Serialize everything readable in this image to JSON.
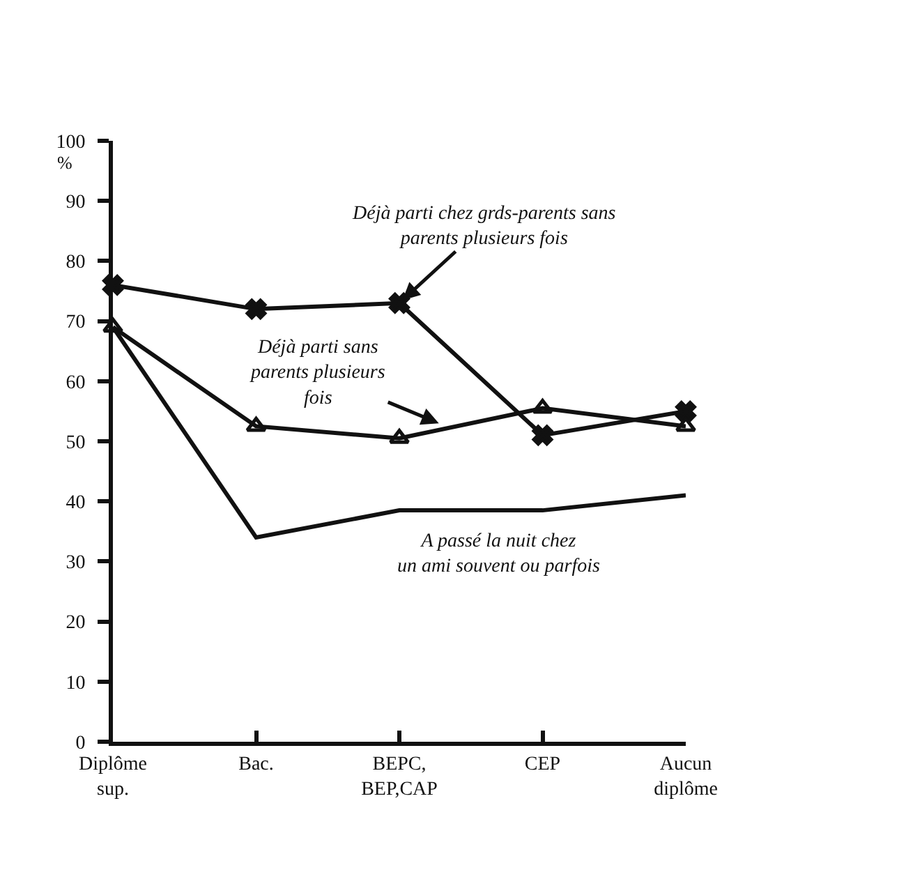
{
  "chart_data": {
    "type": "line",
    "ylabel": "%",
    "categories": [
      "Diplôme sup.",
      "Bac.",
      "BEPC, BEP,CAP",
      "CEP",
      "Aucun diplôme"
    ],
    "series": [
      {
        "color": "#111111",
        "marker": "cross",
        "values": [
          76,
          72,
          73,
          51,
          55
        ]
      },
      {
        "color": "#111111",
        "marker": "triangle",
        "values": [
          69,
          52.5,
          50.5,
          55.5,
          52.5
        ]
      },
      {
        "color": "#111111",
        "marker": "none",
        "values": [
          69,
          34,
          38.5,
          38.5,
          41
        ]
      }
    ],
    "annotations": [
      {
        "text": "Déjà parti chez grds-parents sans parents plusieurs fois",
        "x": "BEPC, BEP,CAP",
        "y": 73
      },
      {
        "text": "Déjà parti sans parents plusieurs fois",
        "y": 53
      },
      "A passé la nuit chez un ami souvent ou parfois"
    ],
    "ylim": [
      0,
      100
    ],
    "yticks": [
      0,
      10,
      20,
      30,
      40,
      50,
      60,
      70,
      80,
      90,
      100
    ],
    "line_style": "solid"
  }
}
